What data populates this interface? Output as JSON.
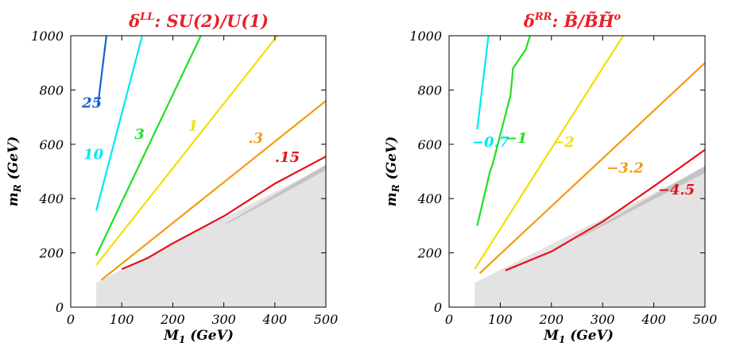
{
  "chart_data": [
    {
      "type": "line",
      "title": "δ^LL: SU(2)/U(1)",
      "title_main": "δ",
      "title_sup": "LL",
      "title_rest": ":  SU(2)/U(1)",
      "xlabel": "M1 (GeV)",
      "xlabel_main": "M",
      "xlabel_sub": "1",
      "xlabel_rest": "  (GeV)",
      "ylabel": "mR (GeV)",
      "ylabel_main": "m",
      "ylabel_sub": "R",
      "ylabel_rest": " (GeV)",
      "xlim": [
        0,
        500
      ],
      "ylim": [
        0,
        1000
      ],
      "xticks": [
        0,
        100,
        200,
        300,
        400,
        500
      ],
      "yticks": [
        0,
        200,
        400,
        600,
        800,
        1000
      ],
      "xtick_labels": [
        "0",
        "100",
        "200",
        "300",
        "400",
        "500"
      ],
      "ytick_labels": [
        "0",
        "200",
        "400",
        "600",
        "800",
        "1000"
      ],
      "excluded_region": {
        "color": "#e3e3e3",
        "points": [
          [
            50,
            0
          ],
          [
            500,
            0
          ],
          [
            500,
            520
          ],
          [
            50,
            90
          ]
        ]
      },
      "boundary_band": {
        "color": "#c4c4c4",
        "points": [
          [
            300,
            300
          ],
          [
            500,
            505
          ],
          [
            500,
            525
          ],
          [
            310,
            315
          ]
        ]
      },
      "series": [
        {
          "name": "25",
          "color": "#1560d4",
          "x": [
            53,
            70
          ],
          "y": [
            740,
            1000
          ],
          "label_at": [
            22,
            735
          ]
        },
        {
          "name": "10",
          "color": "#00e8f0",
          "x": [
            50,
            140
          ],
          "y": [
            355,
            1000
          ],
          "label_at": [
            25,
            545
          ]
        },
        {
          "name": "3",
          "color": "#20e020",
          "x": [
            50,
            255
          ],
          "y": [
            190,
            1000
          ],
          "label_at": [
            125,
            620
          ]
        },
        {
          "name": "1",
          "color": "#f0e000",
          "x": [
            50,
            405
          ],
          "y": [
            155,
            1000
          ],
          "label_at": [
            230,
            650
          ]
        },
        {
          "name": ".3",
          "color": "#f59a10",
          "x": [
            60,
            500
          ],
          "y": [
            100,
            760
          ],
          "label_at": [
            348,
            605
          ]
        },
        {
          "name": ".15",
          "color": "#e8101a",
          "x": [
            100,
            150,
            200,
            250,
            300,
            400,
            500
          ],
          "y": [
            140,
            180,
            235,
            285,
            335,
            455,
            555
          ],
          "label_at": [
            400,
            535
          ]
        }
      ]
    },
    {
      "type": "line",
      "title": "δ^RR: B̃/B̃H̃^o",
      "title_main": "δ",
      "title_sup": "RR",
      "title_rest": ":  B̃/B̃H̃",
      "title_sup2": "o",
      "xlabel": "M1 (GeV)",
      "xlabel_main": "M",
      "xlabel_sub": "1",
      "xlabel_rest": "  (GeV)",
      "ylabel": "mR (GeV)",
      "ylabel_main": "m",
      "ylabel_sub": "R",
      "ylabel_rest": " (GeV)",
      "xlim": [
        0,
        500
      ],
      "ylim": [
        0,
        1000
      ],
      "xticks": [
        0,
        100,
        200,
        300,
        400,
        500
      ],
      "yticks": [
        0,
        200,
        400,
        600,
        800,
        1000
      ],
      "xtick_labels": [
        "0",
        "100",
        "200",
        "300",
        "400",
        "500"
      ],
      "ytick_labels": [
        "0",
        "200",
        "400",
        "600",
        "800",
        "1000"
      ],
      "excluded_region": {
        "color": "#e3e3e3",
        "points": [
          [
            50,
            0
          ],
          [
            500,
            0
          ],
          [
            500,
            515
          ],
          [
            50,
            90
          ]
        ]
      },
      "boundary_band": {
        "color": "#c4c4c4",
        "points": [
          [
            250,
            250
          ],
          [
            500,
            495
          ],
          [
            500,
            520
          ],
          [
            260,
            265
          ]
        ]
      },
      "series": [
        {
          "name": "−0.7",
          "color": "#00e8f0",
          "x": [
            55,
            77
          ],
          "y": [
            655,
            1000
          ],
          "label_at": [
            45,
            590
          ]
        },
        {
          "name": "−1",
          "color": "#20e020",
          "x": [
            55,
            80,
            85,
            120,
            125,
            150,
            158
          ],
          "y": [
            300,
            500,
            525,
            780,
            880,
            950,
            1000
          ],
          "label_at": [
            110,
            605
          ]
        },
        {
          "name": "−2",
          "color": "#f0e000",
          "x": [
            50,
            340
          ],
          "y": [
            140,
            1000
          ],
          "label_at": [
            202,
            590
          ]
        },
        {
          "name": "−3.2",
          "color": "#f59a10",
          "x": [
            60,
            500
          ],
          "y": [
            125,
            900
          ],
          "label_at": [
            308,
            495
          ]
        },
        {
          "name": "−4.5",
          "color": "#e8101a",
          "x": [
            110,
            200,
            300,
            400,
            500
          ],
          "y": [
            135,
            205,
            315,
            445,
            580
          ],
          "label_at": [
            408,
            415
          ]
        }
      ]
    }
  ]
}
